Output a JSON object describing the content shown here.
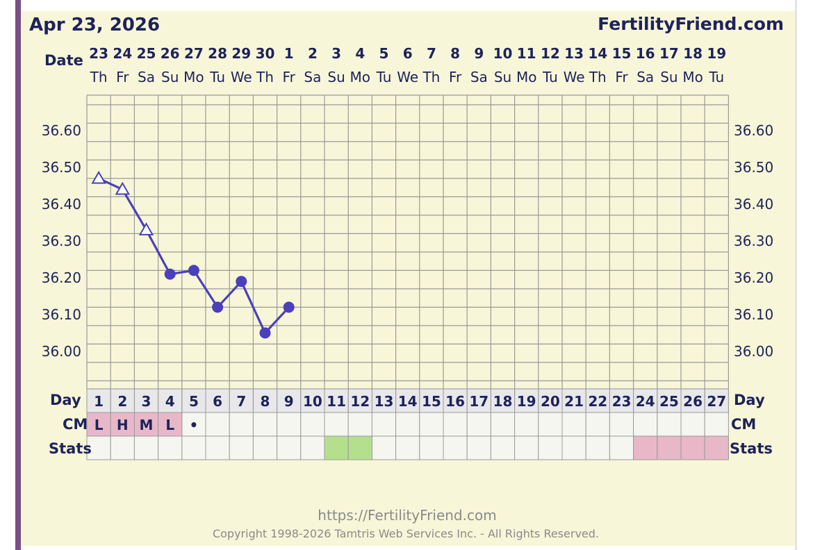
{
  "header": {
    "date_title": "Apr 23, 2026",
    "site_title": "FertilityFriend.com"
  },
  "labels": {
    "date": "Date",
    "day": "Day",
    "cm": "CM",
    "stats": "Stats"
  },
  "footer": {
    "url": "https://FertilityFriend.com",
    "copyright": "Copyright 1998-2026 Tamtris Web Services Inc. - All Rights Reserved."
  },
  "colors": {
    "line": "#4a3fbd",
    "grid": "#9a9a9a",
    "card": "#f8f6d8",
    "cell": "#f6f6f1",
    "cm_pink": "#e8b8c8",
    "stats_green": "#b4e08e",
    "stats_pink": "#e8b8c8",
    "text": "#1d2359"
  },
  "chart_data": {
    "type": "line",
    "y_ticks": [
      "36.60",
      "36.50",
      "36.40",
      "36.30",
      "36.20",
      "36.10",
      "36.00"
    ],
    "ylim": [
      35.92,
      36.69
    ],
    "columns": [
      {
        "date": "23",
        "dow": "Th",
        "day": "1"
      },
      {
        "date": "24",
        "dow": "Fr",
        "day": "2"
      },
      {
        "date": "25",
        "dow": "Sa",
        "day": "3"
      },
      {
        "date": "26",
        "dow": "Su",
        "day": "4"
      },
      {
        "date": "27",
        "dow": "Mo",
        "day": "5"
      },
      {
        "date": "28",
        "dow": "Tu",
        "day": "6"
      },
      {
        "date": "29",
        "dow": "We",
        "day": "7"
      },
      {
        "date": "30",
        "dow": "Th",
        "day": "8"
      },
      {
        "date": "1",
        "dow": "Fr",
        "day": "9"
      },
      {
        "date": "2",
        "dow": "Sa",
        "day": "10"
      },
      {
        "date": "3",
        "dow": "Su",
        "day": "11"
      },
      {
        "date": "4",
        "dow": "Mo",
        "day": "12"
      },
      {
        "date": "5",
        "dow": "Tu",
        "day": "13"
      },
      {
        "date": "6",
        "dow": "We",
        "day": "14"
      },
      {
        "date": "7",
        "dow": "Th",
        "day": "15"
      },
      {
        "date": "8",
        "dow": "Fr",
        "day": "16"
      },
      {
        "date": "9",
        "dow": "Sa",
        "day": "17"
      },
      {
        "date": "10",
        "dow": "Su",
        "day": "18"
      },
      {
        "date": "11",
        "dow": "Mo",
        "day": "19"
      },
      {
        "date": "12",
        "dow": "Tu",
        "day": "20"
      },
      {
        "date": "13",
        "dow": "We",
        "day": "21"
      },
      {
        "date": "14",
        "dow": "Th",
        "day": "22"
      },
      {
        "date": "15",
        "dow": "Fr",
        "day": "23"
      },
      {
        "date": "16",
        "dow": "Sa",
        "day": "24"
      },
      {
        "date": "17",
        "dow": "Su",
        "day": "25"
      },
      {
        "date": "18",
        "dow": "Mo",
        "day": "26"
      },
      {
        "date": "19",
        "dow": "Tu",
        "day": "27"
      }
    ],
    "temperatures": [
      {
        "day": 1,
        "value": 36.47,
        "marker": "triangle"
      },
      {
        "day": 2,
        "value": 36.44,
        "marker": "triangle"
      },
      {
        "day": 3,
        "value": 36.33,
        "marker": "triangle"
      },
      {
        "day": 4,
        "value": 36.21,
        "marker": "dot"
      },
      {
        "day": 5,
        "value": 36.22,
        "marker": "dot"
      },
      {
        "day": 6,
        "value": 36.12,
        "marker": "dot"
      },
      {
        "day": 7,
        "value": 36.19,
        "marker": "dot"
      },
      {
        "day": 8,
        "value": 36.05,
        "marker": "dot"
      },
      {
        "day": 9,
        "value": 36.12,
        "marker": "dot"
      }
    ],
    "cm": [
      {
        "day": 1,
        "text": "L",
        "highlight": true
      },
      {
        "day": 2,
        "text": "H",
        "highlight": true
      },
      {
        "day": 3,
        "text": "M",
        "highlight": true
      },
      {
        "day": 4,
        "text": "L",
        "highlight": true
      },
      {
        "day": 5,
        "text": "•",
        "highlight": false
      }
    ],
    "stats": [
      {
        "day": 11,
        "status": "green"
      },
      {
        "day": 12,
        "status": "green"
      },
      {
        "day": 24,
        "status": "pink"
      },
      {
        "day": 25,
        "status": "pink"
      },
      {
        "day": 26,
        "status": "pink"
      },
      {
        "day": 27,
        "status": "pink"
      }
    ]
  }
}
